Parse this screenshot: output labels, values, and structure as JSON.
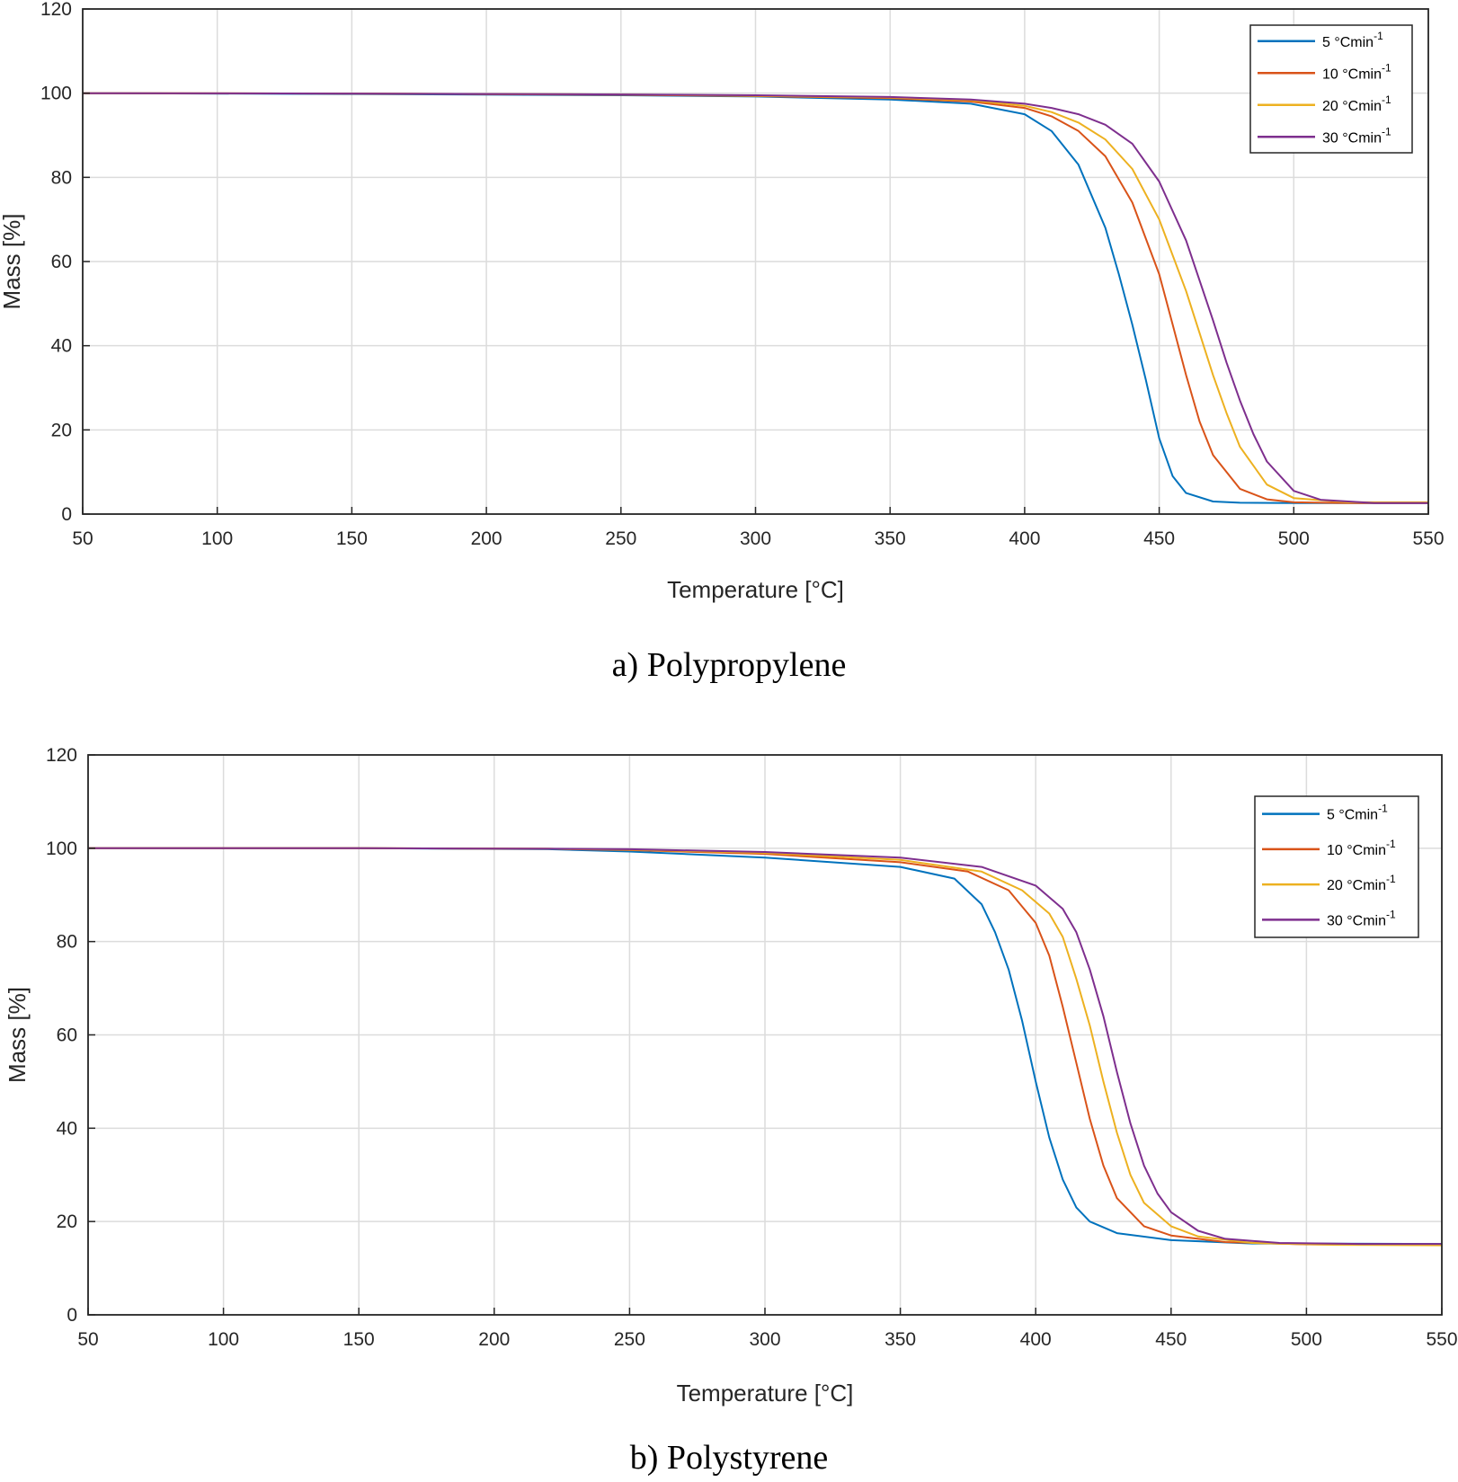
{
  "captions": {
    "a": "a) Polypropylene",
    "b": "b) Polystyrene"
  },
  "colors": {
    "5": "#0072BD",
    "10": "#D95319",
    "20": "#EDB120",
    "30": "#7E2F8E",
    "grid": "#dcdcdc",
    "axis": "#262626"
  },
  "chart_data": [
    {
      "type": "line",
      "xlabel": "Temperature [°C]",
      "ylabel": "Mass [%]",
      "xlim": [
        50,
        550
      ],
      "ylim": [
        0,
        120
      ],
      "xticks": [
        50,
        100,
        150,
        200,
        250,
        300,
        350,
        400,
        450,
        500,
        550
      ],
      "yticks": [
        0,
        20,
        40,
        60,
        80,
        100,
        120
      ],
      "grid": true,
      "legend_position": "top-right",
      "legend_unit": "°Cmin",
      "legend_exponent": "-1",
      "series": [
        {
          "name": "5",
          "x": [
            50,
            150,
            250,
            300,
            350,
            380,
            400,
            410,
            420,
            430,
            435,
            440,
            445,
            450,
            455,
            460,
            470,
            480,
            500,
            550
          ],
          "y": [
            100,
            99.8,
            99.5,
            99.2,
            98.5,
            97.5,
            95.0,
            91.0,
            83.0,
            68.0,
            57.0,
            45.0,
            32.0,
            18.0,
            9.0,
            5.0,
            3.0,
            2.7,
            2.6,
            2.6
          ]
        },
        {
          "name": "10",
          "x": [
            50,
            150,
            250,
            300,
            350,
            380,
            400,
            410,
            420,
            430,
            440,
            450,
            455,
            460,
            465,
            470,
            480,
            490,
            500,
            520,
            550
          ],
          "y": [
            100,
            99.9,
            99.6,
            99.3,
            98.8,
            98.0,
            96.5,
            94.5,
            91.0,
            85.0,
            74.0,
            57.0,
            45.0,
            33.0,
            22.0,
            14.0,
            6.0,
            3.5,
            2.8,
            2.6,
            2.6
          ]
        },
        {
          "name": "20",
          "x": [
            50,
            150,
            250,
            300,
            350,
            380,
            400,
            410,
            420,
            430,
            440,
            450,
            460,
            465,
            470,
            475,
            480,
            490,
            500,
            520,
            550
          ],
          "y": [
            100,
            99.9,
            99.7,
            99.4,
            99.0,
            98.3,
            97.0,
            95.5,
            93.0,
            89.0,
            82.0,
            70.0,
            53.0,
            43.0,
            33.0,
            24.0,
            16.0,
            7.0,
            3.8,
            2.8,
            2.8
          ]
        },
        {
          "name": "30",
          "x": [
            50,
            150,
            250,
            300,
            350,
            380,
            400,
            410,
            420,
            430,
            440,
            450,
            460,
            470,
            475,
            480,
            485,
            490,
            500,
            510,
            530,
            550
          ],
          "y": [
            100,
            99.9,
            99.7,
            99.5,
            99.1,
            98.5,
            97.5,
            96.5,
            95.0,
            92.5,
            88.0,
            79.0,
            65.0,
            46.0,
            36.0,
            27.0,
            19.0,
            12.5,
            5.5,
            3.4,
            2.6,
            2.6
          ]
        }
      ]
    },
    {
      "type": "line",
      "xlabel": "Temperature [°C]",
      "ylabel": "Mass [%]",
      "xlim": [
        50,
        550
      ],
      "ylim": [
        0,
        120
      ],
      "xticks": [
        50,
        100,
        150,
        200,
        250,
        300,
        350,
        400,
        450,
        500,
        550
      ],
      "yticks": [
        0,
        20,
        40,
        60,
        80,
        100,
        120
      ],
      "grid": true,
      "legend_position": "top-right",
      "legend_unit": "°Cmin",
      "legend_exponent": "-1",
      "series": [
        {
          "name": "5",
          "x": [
            50,
            150,
            220,
            250,
            300,
            350,
            370,
            380,
            385,
            390,
            395,
            400,
            405,
            410,
            415,
            420,
            430,
            450,
            480,
            550
          ],
          "y": [
            100,
            100,
            99.8,
            99.3,
            98.0,
            96.0,
            93.5,
            88.0,
            82.0,
            74.0,
            63.0,
            50.0,
            38.0,
            29.0,
            23.0,
            20.0,
            17.5,
            16.0,
            15.3,
            15.2
          ]
        },
        {
          "name": "10",
          "x": [
            50,
            150,
            220,
            250,
            300,
            350,
            375,
            390,
            400,
            405,
            410,
            415,
            420,
            425,
            430,
            440,
            450,
            470,
            500,
            550
          ],
          "y": [
            100,
            100,
            99.9,
            99.6,
            98.8,
            97.0,
            95.0,
            91.0,
            84.0,
            77.0,
            66.0,
            54.0,
            42.0,
            32.0,
            25.0,
            19.0,
            17.0,
            15.6,
            15.1,
            15.0
          ]
        },
        {
          "name": "20",
          "x": [
            50,
            150,
            220,
            250,
            300,
            350,
            380,
            395,
            405,
            410,
            415,
            420,
            425,
            430,
            435,
            440,
            450,
            460,
            480,
            510,
            550
          ],
          "y": [
            100,
            100,
            99.9,
            99.7,
            99.0,
            97.5,
            95.0,
            91.0,
            86.0,
            81.0,
            72.0,
            62.0,
            50.0,
            39.0,
            30.0,
            24.0,
            19.0,
            16.8,
            15.4,
            15.0,
            14.9
          ]
        },
        {
          "name": "30",
          "x": [
            50,
            150,
            220,
            250,
            300,
            350,
            380,
            400,
            410,
            415,
            420,
            425,
            430,
            435,
            440,
            445,
            450,
            460,
            470,
            490,
            520,
            550
          ],
          "y": [
            100,
            100,
            99.9,
            99.8,
            99.2,
            98.0,
            96.0,
            92.0,
            87.0,
            82.0,
            74.0,
            64.0,
            52.0,
            41.0,
            32.0,
            26.0,
            22.0,
            18.0,
            16.3,
            15.4,
            15.2,
            15.2
          ]
        }
      ]
    }
  ]
}
